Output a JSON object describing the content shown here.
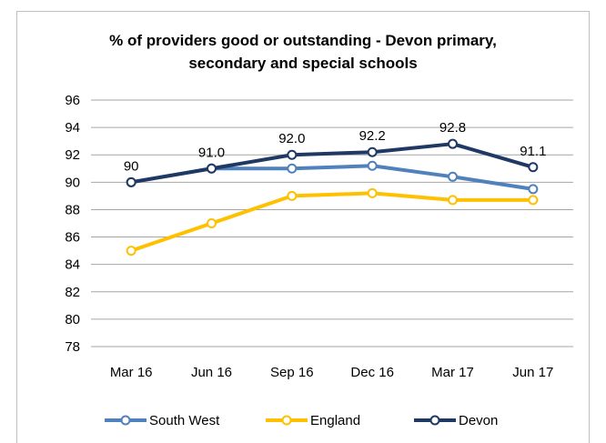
{
  "chart_data": {
    "type": "line",
    "title_lines": [
      "% of providers good or outstanding - Devon primary,",
      "secondary and special schools"
    ],
    "categories": [
      "Mar 16",
      "Jun 16",
      "Sep 16",
      "Dec 16",
      "Mar 17",
      "Jun 17"
    ],
    "y_ticks": [
      "96",
      "94",
      "92",
      "90",
      "88",
      "86",
      "84",
      "82",
      "80",
      "78"
    ],
    "ylim": [
      78,
      96
    ],
    "grid": true,
    "legend_position": "bottom",
    "series": [
      {
        "name": "South West",
        "color": "#4f81bd",
        "values": [
          90.0,
          91.0,
          91.0,
          91.2,
          90.4,
          89.5
        ]
      },
      {
        "name": "England",
        "color": "#ffc000",
        "values": [
          85.0,
          87.0,
          89.0,
          89.2,
          88.7,
          88.7
        ]
      },
      {
        "name": "Devon",
        "color": "#1f3864",
        "values": [
          90.0,
          91.0,
          92.0,
          92.2,
          92.8,
          91.1
        ],
        "data_labels": [
          "90",
          "91.0",
          "92.0",
          "92.2",
          "92.8",
          "91.1"
        ]
      }
    ]
  }
}
